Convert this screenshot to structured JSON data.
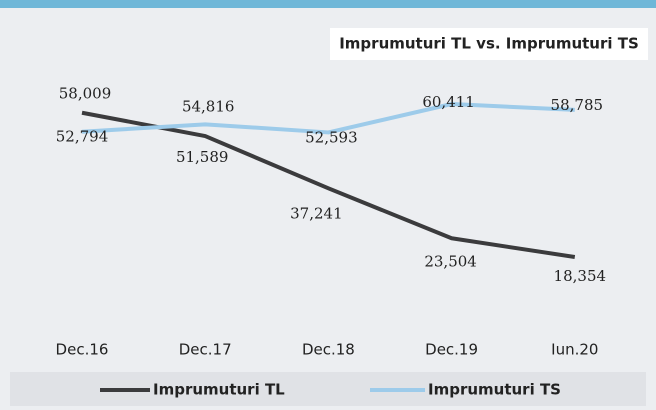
{
  "chart_data": {
    "type": "line",
    "title": "Imprumuturi TL vs. Imprumuturi TS",
    "categories": [
      "Dec.16",
      "Dec.17",
      "Dec.18",
      "Dec.19",
      "Iun.20"
    ],
    "series": [
      {
        "name": "Imprumuturi TL",
        "color": "#3b3b3d",
        "values": [
          58009,
          51589,
          37241,
          23504,
          18354
        ],
        "value_labels": [
          "58,009",
          "51,589",
          "37,241",
          "23,504",
          "18,354"
        ]
      },
      {
        "name": "Imprumuturi TS",
        "color": "#9dcbea",
        "values": [
          52794,
          54816,
          52593,
          60411,
          58785
        ],
        "value_labels": [
          "52,794",
          "54,816",
          "52,593",
          "60,411",
          "58,785"
        ]
      }
    ]
  }
}
